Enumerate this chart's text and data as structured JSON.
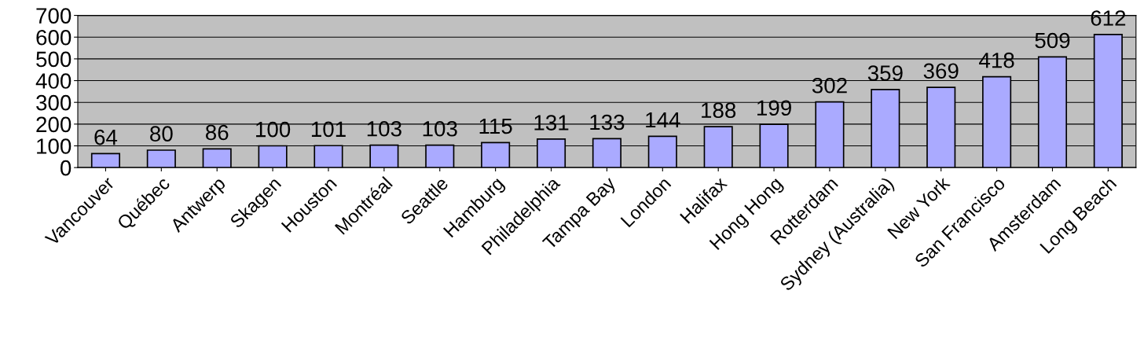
{
  "chart_data": {
    "type": "bar",
    "categories": [
      "Vancouver",
      "Québec",
      "Antwerp",
      "Skagen",
      "Houston",
      "Montréal",
      "Seattle",
      "Hamburg",
      "Philadelphia",
      "Tampa Bay",
      "London",
      "Halifax",
      "Hong Hong",
      "Rotterdam",
      "Sydney (Australia)",
      "New York",
      "San Francisco",
      "Amsterdam",
      "Long Beach"
    ],
    "values": [
      64,
      80,
      86,
      100,
      101,
      103,
      103,
      115,
      131,
      133,
      144,
      188,
      199,
      302,
      359,
      369,
      418,
      509,
      612
    ],
    "color": "#aaaaff",
    "ylim": [
      0,
      700
    ],
    "yticks": [
      0,
      100,
      200,
      300,
      400,
      500,
      600,
      700
    ],
    "grid": "y",
    "data_labels": true
  }
}
